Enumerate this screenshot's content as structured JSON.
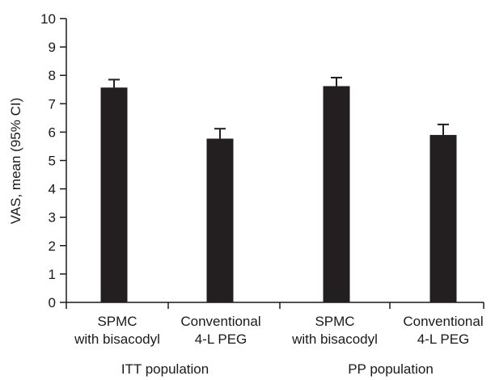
{
  "chart_data": {
    "type": "bar",
    "ylabel": "VAS, mean (95% CI)",
    "ylim": [
      0,
      10
    ],
    "yticks": [
      "0",
      "1",
      "2",
      "3",
      "4",
      "5",
      "6",
      "7",
      "8",
      "9",
      "10"
    ],
    "categories": [
      {
        "line1": "SPMC",
        "line2": "with bisacodyl"
      },
      {
        "line1": "Conventional",
        "line2": "4-L PEG"
      },
      {
        "line1": "SPMC",
        "line2": "with bisacodyl"
      },
      {
        "line1": "Conventional",
        "line2": "4-L PEG"
      }
    ],
    "groups": [
      {
        "label": "ITT population",
        "categories": [
          0,
          1
        ]
      },
      {
        "label": "PP population",
        "categories": [
          2,
          3
        ]
      }
    ],
    "values": [
      7.57,
      5.77,
      7.62,
      5.9
    ],
    "ci_upper": [
      7.85,
      6.12,
      7.92,
      6.27
    ],
    "bar_color": "#231f20"
  }
}
